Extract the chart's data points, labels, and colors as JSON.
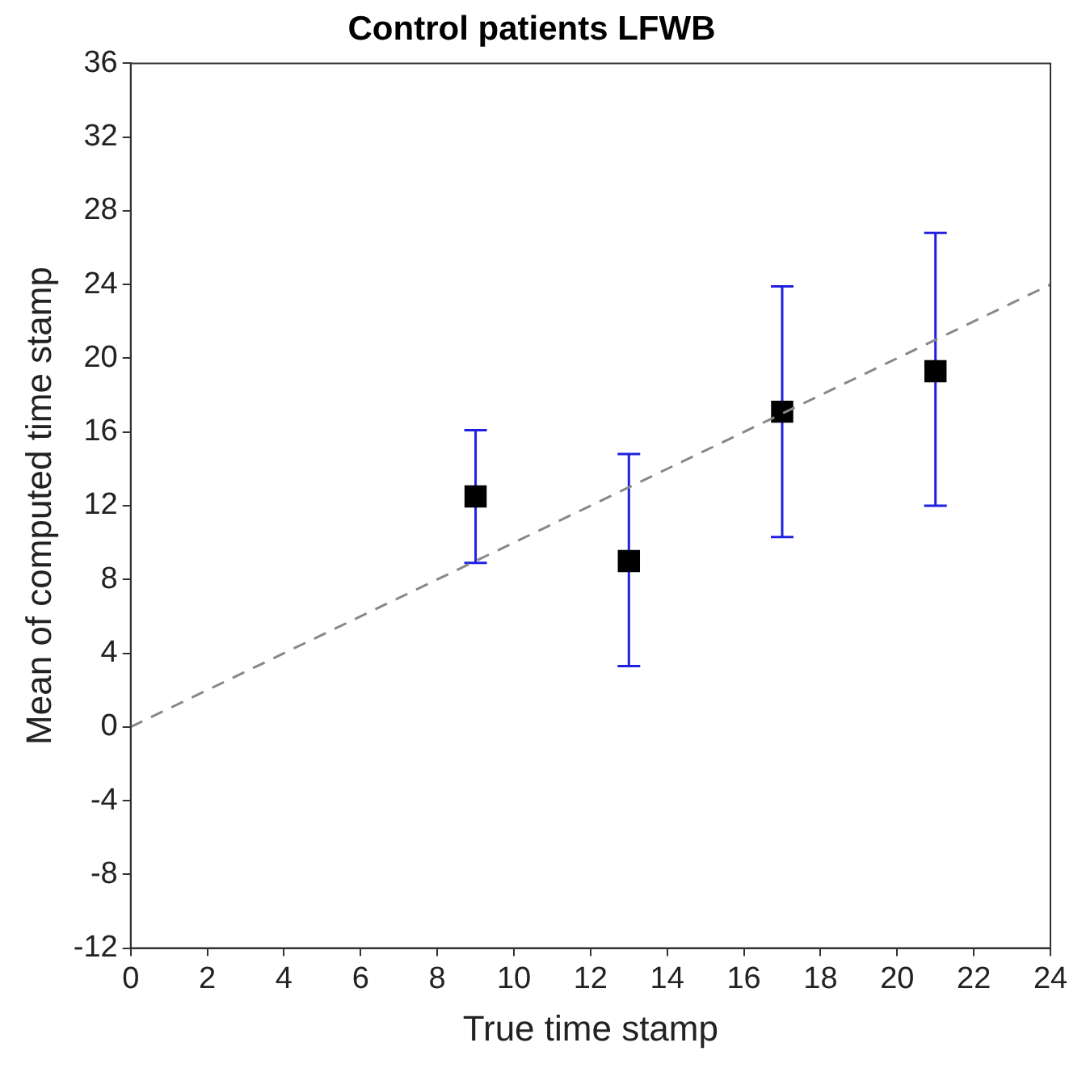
{
  "chart_data": {
    "type": "scatter",
    "title": "Control patients LFWB",
    "xlabel": "True time stamp",
    "ylabel": "Mean of computed time stamp",
    "xlim": [
      0,
      24
    ],
    "xticks": [
      0,
      2,
      4,
      6,
      8,
      10,
      12,
      14,
      16,
      18,
      20,
      22,
      24
    ],
    "ylim": [
      -12,
      36
    ],
    "yticks": [
      -12,
      -8,
      -4,
      0,
      4,
      8,
      12,
      16,
      20,
      24,
      28,
      32,
      36
    ],
    "grid": false,
    "legend": false,
    "series": [
      {
        "type": "line",
        "color": "#888888",
        "line_style": "dashed",
        "marker": "none",
        "x": [
          0,
          24
        ],
        "values": [
          0,
          24
        ]
      },
      {
        "color": "#000000",
        "marker": "square",
        "x": [
          9,
          13,
          17,
          21
        ],
        "values": [
          12.5,
          9.0,
          17.1,
          19.3
        ],
        "errors": [
          [
            8.9,
            16.1
          ],
          [
            3.3,
            14.8
          ],
          [
            10.3,
            23.9
          ],
          [
            12.0,
            26.8
          ]
        ]
      }
    ]
  }
}
